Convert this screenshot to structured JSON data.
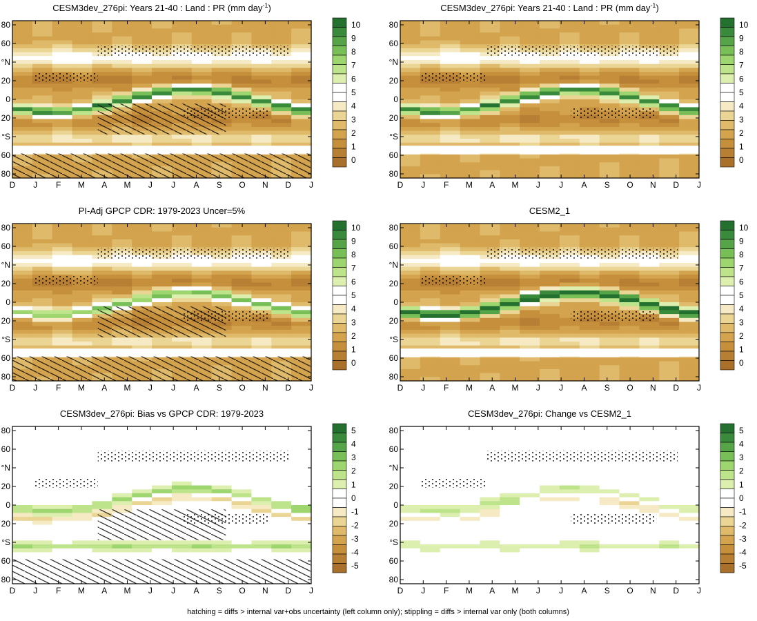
{
  "figure": {
    "footnote": "hatching = diffs > internal var+obs uncertainty (left column only); stippling = diffs > internal var only (both columns)"
  },
  "months": [
    "D",
    "J",
    "F",
    "M",
    "A",
    "M",
    "J",
    "J",
    "A",
    "S",
    "O",
    "N",
    "D",
    "J"
  ],
  "lat_ticks": [
    "80",
    "60",
    "°N",
    "20",
    "0",
    "20",
    "°S",
    "60",
    "80"
  ],
  "chart_data": [
    {
      "type": "heatmap",
      "panel": "a",
      "row": 0,
      "col": 0,
      "title": "CESM3dev_276pi: Years 21-40 : Land : PR (mm day",
      "title_sup": "-1",
      "title_close": ")",
      "kind": "abs",
      "hatch": true,
      "stipple": true,
      "itcz_strength": 1.0,
      "x_ticks": [
        "D",
        "J",
        "F",
        "M",
        "A",
        "M",
        "J",
        "J",
        "A",
        "S",
        "O",
        "N",
        "D",
        "J"
      ],
      "y_ticks": [
        "80",
        "60",
        "°N",
        "20",
        "0",
        "20",
        "°S",
        "60",
        "80"
      ],
      "colorbar": [
        "0",
        "1",
        "2",
        "3",
        "4",
        "5",
        "6",
        "7",
        "8",
        "9",
        "10"
      ],
      "cmap_colors": [
        "#a8702b",
        "#b77f33",
        "#c58f3c",
        "#d3a34e",
        "#deba6a",
        "#ebd594",
        "#f5eac3",
        "#ffffff",
        "#ffffff",
        "#dcefae",
        "#bde48a",
        "#9dd56e",
        "#79bf57",
        "#55a447",
        "#3a8a3c",
        "#23702f"
      ]
    },
    {
      "type": "heatmap",
      "panel": "b",
      "row": 0,
      "col": 1,
      "title": "CESM3dev_276pi: Years 21-40 : Land : PR (mm day",
      "title_sup": "-1",
      "title_close": ")",
      "kind": "abs",
      "hatch": false,
      "stipple": true,
      "itcz_strength": 1.0,
      "x_ticks": [
        "D",
        "J",
        "F",
        "M",
        "A",
        "M",
        "J",
        "J",
        "A",
        "S",
        "O",
        "N",
        "D",
        "J"
      ],
      "y_ticks": [
        "80",
        "60",
        "°N",
        "20",
        "0",
        "20",
        "°S",
        "60",
        "80"
      ],
      "colorbar": [
        "0",
        "1",
        "2",
        "3",
        "4",
        "5",
        "6",
        "7",
        "8",
        "9",
        "10"
      ],
      "cmap_colors": [
        "#a8702b",
        "#b77f33",
        "#c58f3c",
        "#d3a34e",
        "#deba6a",
        "#ebd594",
        "#f5eac3",
        "#ffffff",
        "#ffffff",
        "#dcefae",
        "#bde48a",
        "#9dd56e",
        "#79bf57",
        "#55a447",
        "#3a8a3c",
        "#23702f"
      ]
    },
    {
      "type": "heatmap",
      "panel": "c",
      "row": 1,
      "col": 0,
      "title": "PI-Adj GPCP CDR: 1979-2023 Uncer=5%",
      "kind": "abs",
      "hatch": true,
      "stipple": true,
      "itcz_strength": 0.8,
      "x_ticks": [
        "D",
        "J",
        "F",
        "M",
        "A",
        "M",
        "J",
        "J",
        "A",
        "S",
        "O",
        "N",
        "D",
        "J"
      ],
      "y_ticks": [
        "80",
        "60",
        "°N",
        "20",
        "0",
        "20",
        "°S",
        "60",
        "80"
      ],
      "colorbar": [
        "0",
        "1",
        "2",
        "3",
        "4",
        "5",
        "6",
        "7",
        "8",
        "9",
        "10"
      ],
      "cmap_colors": [
        "#a8702b",
        "#b77f33",
        "#c58f3c",
        "#d3a34e",
        "#deba6a",
        "#ebd594",
        "#f5eac3",
        "#ffffff",
        "#ffffff",
        "#dcefae",
        "#bde48a",
        "#9dd56e",
        "#79bf57",
        "#55a447",
        "#3a8a3c",
        "#23702f"
      ]
    },
    {
      "type": "heatmap",
      "panel": "d",
      "row": 1,
      "col": 1,
      "title": "CESM2_1",
      "kind": "abs",
      "hatch": false,
      "stipple": true,
      "itcz_strength": 1.2,
      "x_ticks": [
        "D",
        "J",
        "F",
        "M",
        "A",
        "M",
        "J",
        "J",
        "A",
        "S",
        "O",
        "N",
        "D",
        "J"
      ],
      "y_ticks": [
        "80",
        "60",
        "°N",
        "20",
        "0",
        "20",
        "°S",
        "60",
        "80"
      ],
      "colorbar": [
        "0",
        "1",
        "2",
        "3",
        "4",
        "5",
        "6",
        "7",
        "8",
        "9",
        "10"
      ],
      "cmap_colors": [
        "#a8702b",
        "#b77f33",
        "#c58f3c",
        "#d3a34e",
        "#deba6a",
        "#ebd594",
        "#f5eac3",
        "#ffffff",
        "#ffffff",
        "#dcefae",
        "#bde48a",
        "#9dd56e",
        "#79bf57",
        "#55a447",
        "#3a8a3c",
        "#23702f"
      ]
    },
    {
      "type": "heatmap",
      "panel": "e",
      "row": 2,
      "col": 0,
      "title": "CESM3dev_276pi: Bias vs GPCP CDR: 1979-2023",
      "kind": "diff",
      "hatch": true,
      "stipple": true,
      "itcz_strength": 1.0,
      "x_ticks": [
        "D",
        "J",
        "F",
        "M",
        "A",
        "M",
        "J",
        "J",
        "A",
        "S",
        "O",
        "N",
        "D",
        "J"
      ],
      "y_ticks": [
        "80",
        "60",
        "°N",
        "20",
        "0",
        "20",
        "°S",
        "60",
        "80"
      ],
      "colorbar": [
        "-5",
        "-4",
        "-3",
        "-2",
        "-1",
        "0",
        "1",
        "2",
        "3",
        "4",
        "5"
      ],
      "cmap_colors": [
        "#a8702b",
        "#b77f33",
        "#c58f3c",
        "#d3a34e",
        "#deba6a",
        "#ebd594",
        "#f5eac3",
        "#ffffff",
        "#ffffff",
        "#dcefae",
        "#bde48a",
        "#9dd56e",
        "#79bf57",
        "#55a447",
        "#3a8a3c",
        "#23702f"
      ]
    },
    {
      "type": "heatmap",
      "panel": "f",
      "row": 2,
      "col": 1,
      "title": "CESM3dev_276pi: Change vs CESM2_1",
      "kind": "diff2",
      "hatch": false,
      "stipple": true,
      "itcz_strength": 1.0,
      "x_ticks": [
        "D",
        "J",
        "F",
        "M",
        "A",
        "M",
        "J",
        "J",
        "A",
        "S",
        "O",
        "N",
        "D",
        "J"
      ],
      "y_ticks": [
        "80",
        "60",
        "°N",
        "20",
        "0",
        "20",
        "°S",
        "60",
        "80"
      ],
      "colorbar": [
        "-5",
        "-4",
        "-3",
        "-2",
        "-1",
        "0",
        "1",
        "2",
        "3",
        "4",
        "5"
      ],
      "cmap_colors": [
        "#a8702b",
        "#b77f33",
        "#c58f3c",
        "#d3a34e",
        "#deba6a",
        "#ebd594",
        "#f5eac3",
        "#ffffff",
        "#ffffff",
        "#dcefae",
        "#bde48a",
        "#9dd56e",
        "#79bf57",
        "#55a447",
        "#3a8a3c",
        "#23702f"
      ]
    }
  ]
}
